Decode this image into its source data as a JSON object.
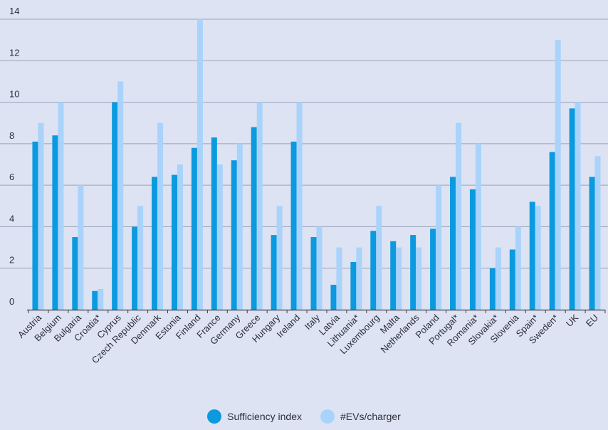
{
  "colors": {
    "background": "#dde3f2",
    "series_primary": "#0b9ae0",
    "series_secondary": "#a9d3fb",
    "gridline": "#9aa3b8",
    "axis": "#3a3f4c"
  },
  "chart_data": {
    "type": "bar",
    "title": "",
    "xlabel": "",
    "ylabel": "",
    "ylim": [
      0,
      14
    ],
    "yticks": [
      "0",
      "2",
      "4",
      "6",
      "8",
      "10",
      "12",
      "14"
    ],
    "grid": true,
    "legend_position": "bottom-center",
    "categories": [
      "Austria",
      "Belgium",
      "Bulgaria",
      "Croatia*",
      "Cyprus",
      "Czech Republic",
      "Denmark",
      "Estonia",
      "Finland",
      "France",
      "Germany",
      "Greece",
      "Hungary",
      "Ireland",
      "Italy",
      "Latvia",
      "Lithuania*",
      "Luxembourg",
      "Malta",
      "Netherlands",
      "Poland",
      "Portugal*",
      "Romania*",
      "Slovakia*",
      "Slovenia",
      "Spain*",
      "Sweden*",
      "UK",
      "EU"
    ],
    "series": [
      {
        "name": "Sufficiency index",
        "values": [
          8.1,
          8.4,
          3.5,
          0.9,
          10.0,
          4.0,
          6.4,
          6.5,
          7.8,
          8.3,
          7.2,
          8.8,
          3.6,
          8.1,
          3.5,
          1.2,
          2.3,
          3.8,
          3.3,
          3.6,
          3.9,
          6.4,
          5.8,
          2.0,
          2.9,
          5.2,
          7.6,
          9.7,
          6.4
        ]
      },
      {
        "name": "#EVs/charger",
        "values": [
          9,
          10,
          6,
          1,
          11,
          5,
          9,
          7,
          14,
          7,
          8,
          10,
          5,
          10,
          4,
          3,
          3,
          5,
          3,
          3,
          6,
          9,
          8,
          3,
          4,
          5,
          13,
          10,
          7.4
        ]
      }
    ]
  }
}
